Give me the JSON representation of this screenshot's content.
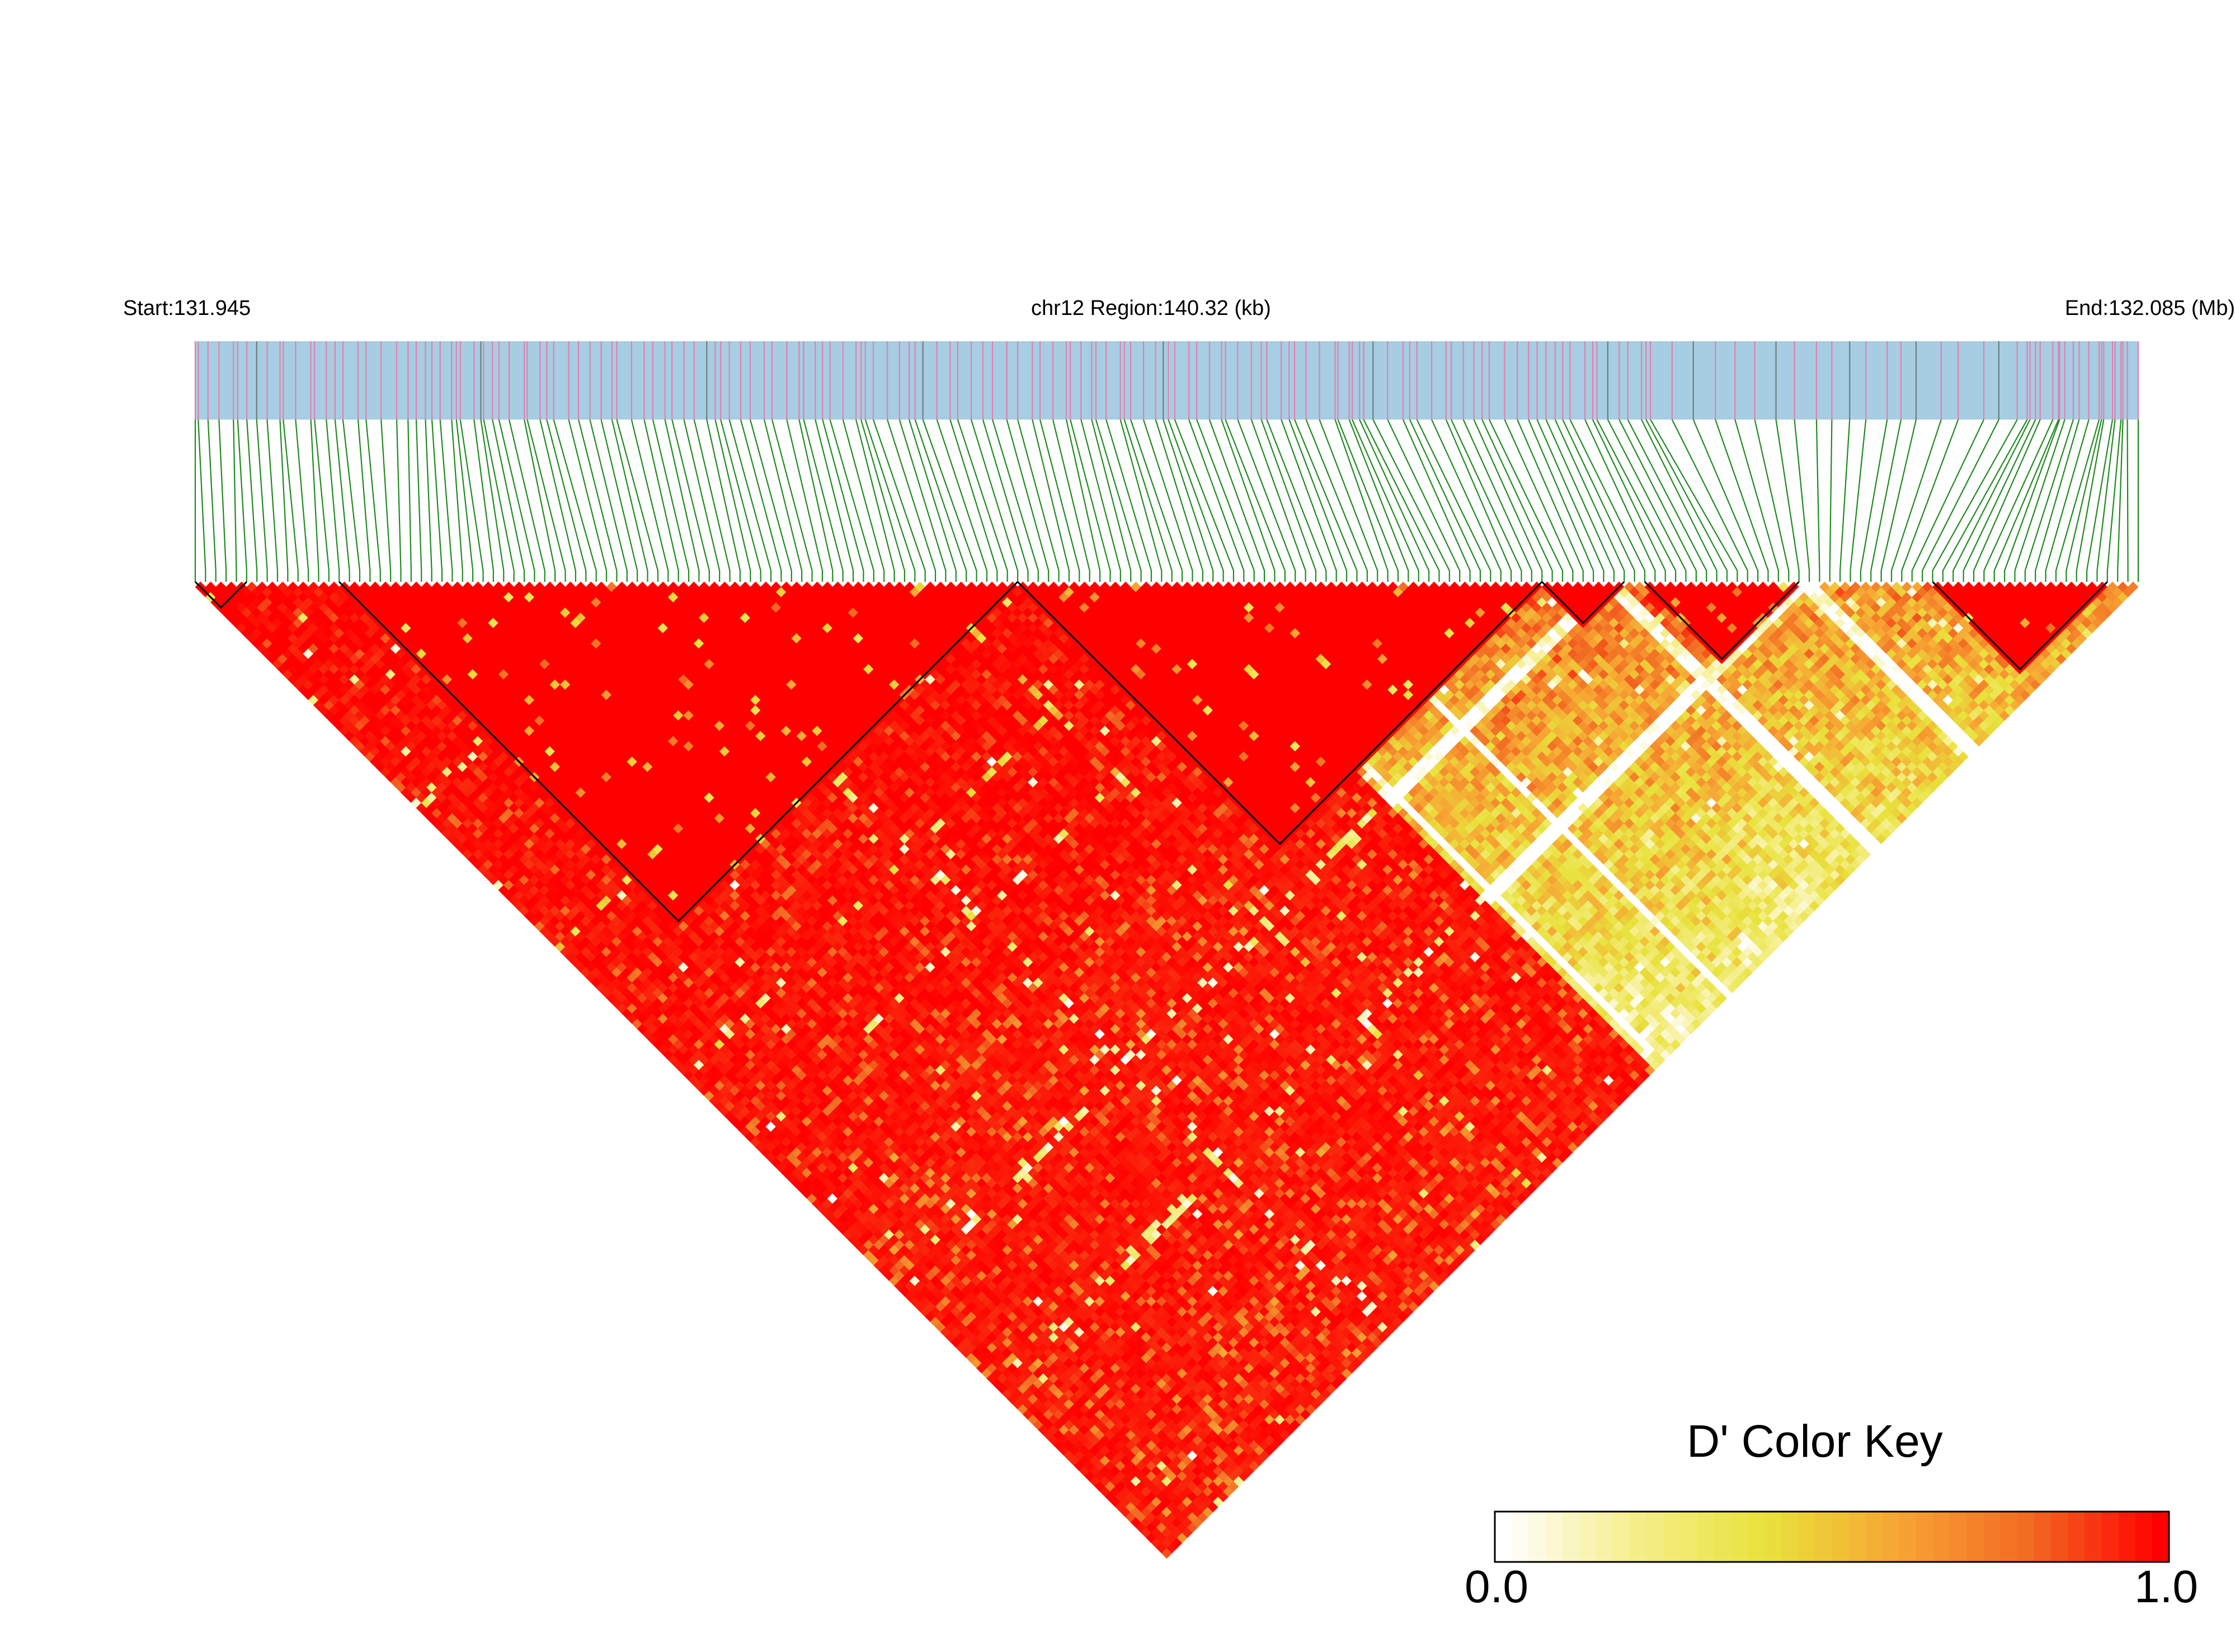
{
  "header": {
    "start_label": "Start:131.945",
    "region_label": "chr12 Region:140.32 (kb)",
    "end_label": "End:132.085 (Mb)"
  },
  "chart_data": {
    "type": "heatmap",
    "subtype": "LD triangle heatmap (D')",
    "chromosome": "chr12",
    "region_start_mb": 131.945,
    "region_end_mb": 132.085,
    "region_length_kb": 140.32,
    "n_markers": 190,
    "legend": {
      "title": "D' Color Key",
      "min_label": "0.0",
      "max_label": "1.0",
      "min": 0.0,
      "max": 1.0,
      "colors": [
        "#ffffff",
        "#f5ee8a",
        "#e8e23c",
        "#f7a534",
        "#f26a22",
        "#ff0000"
      ]
    },
    "haplotype_blocks_marker_index": [
      [
        0,
        5
      ],
      [
        14,
        80
      ],
      [
        80,
        131
      ],
      [
        131,
        139
      ],
      [
        141,
        156
      ],
      [
        169,
        186
      ]
    ],
    "colors": {
      "track_fill": "#a6cde1",
      "snp_line_pink": "#e47fb0",
      "snp_line_gray": "#6d7d7d",
      "connector_line": "#1f8a1f",
      "block_outline": "#000000"
    }
  }
}
